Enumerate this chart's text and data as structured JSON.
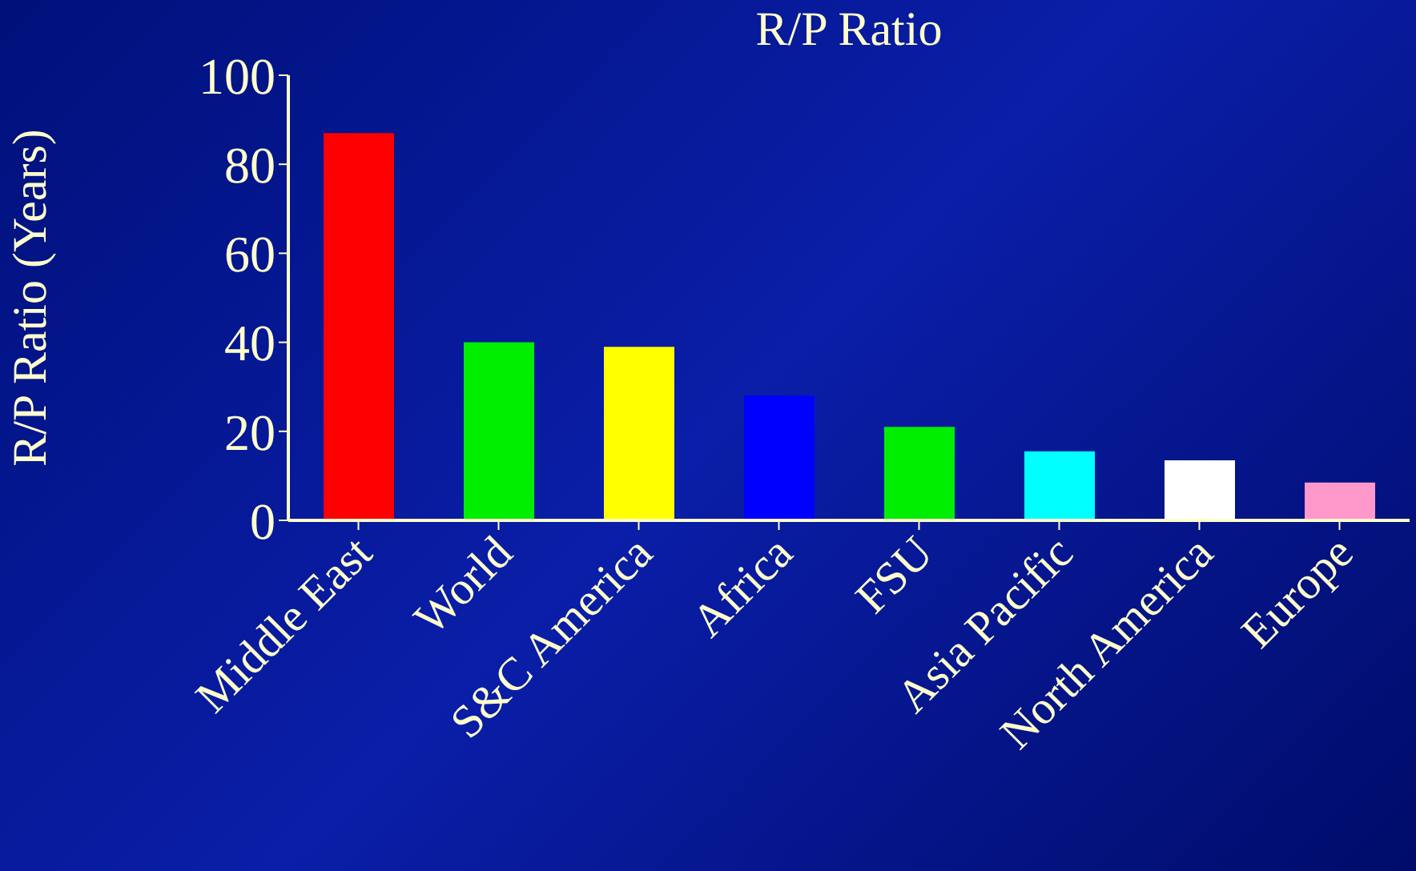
{
  "chart_data": {
    "type": "bar",
    "title": "R/P Ratio",
    "ylabel": "R/P Ratio (Years)",
    "categories": [
      "Middle East",
      "World",
      "S&C America",
      "Africa",
      "FSU",
      "Asia Pacific",
      "North America",
      "Europe"
    ],
    "values": [
      87,
      40,
      39,
      28,
      21,
      15.5,
      13.5,
      8.5
    ],
    "colors": [
      "#ff0000",
      "#00ee00",
      "#ffff00",
      "#0000ff",
      "#00ee00",
      "#00ffff",
      "#ffffff",
      "#ff99cc"
    ],
    "ylim": [
      0,
      100
    ],
    "yticks": [
      0,
      20,
      40,
      60,
      80,
      100
    ],
    "grid": false,
    "legend": false
  }
}
